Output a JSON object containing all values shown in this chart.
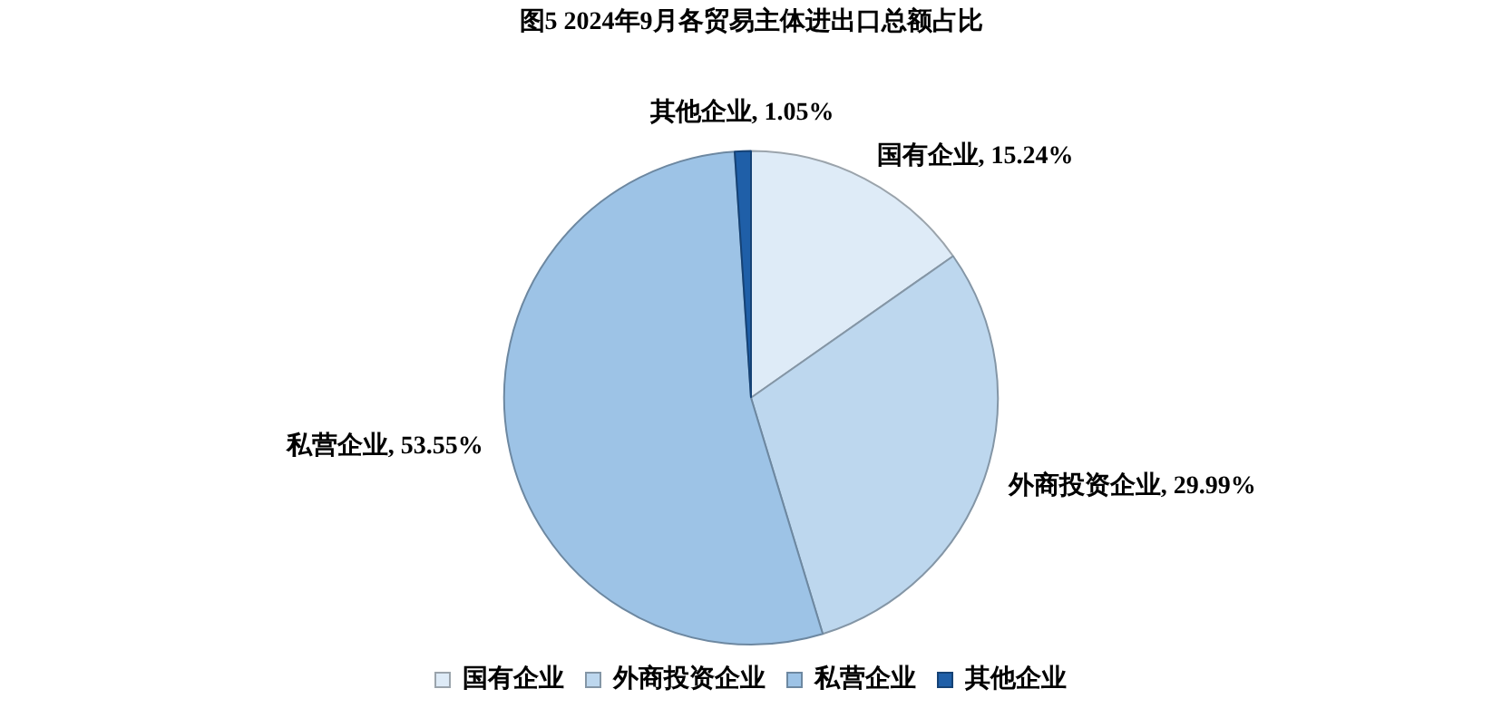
{
  "chart_data": {
    "type": "pie",
    "title": "图5 2024年9月各贸易主体进出口总额占比",
    "categories": [
      "国有企业",
      "外商投资企业",
      "私营企业",
      "其他企业"
    ],
    "values": [
      15.24,
      29.99,
      53.55,
      1.05
    ],
    "colors": [
      "#deebf7",
      "#bdd7ee",
      "#9dc3e6",
      "#1f5fa8"
    ],
    "value_labels": [
      "国有企业, 15.24%",
      "外商投资企业, 29.99%",
      "私营企业, 53.55%",
      "其他企业, 1.05%"
    ],
    "legend": "bottom"
  }
}
